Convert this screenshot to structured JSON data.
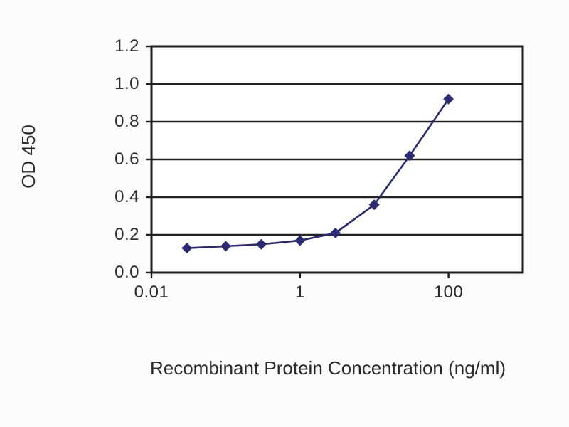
{
  "colors": {
    "page_background": "#fcfcfc",
    "plot_background": "#ffffff",
    "grid": "#222222",
    "frame": "#1d1d1d",
    "text": "#2b2b2b",
    "series": "#2a2a75"
  },
  "chart_data": {
    "type": "line",
    "xlabel": "Recombinant Protein Concentration (ng/ml)",
    "ylabel": "OD 450",
    "x_scale": "log",
    "xlim": [
      0.01,
      1000
    ],
    "ylim": [
      0,
      1.2
    ],
    "grid": "horizontal",
    "legend": "none",
    "x_ticks": [
      {
        "value": 0.01,
        "label": "0.01"
      },
      {
        "value": 1,
        "label": "1"
      },
      {
        "value": 100,
        "label": "100"
      }
    ],
    "y_ticks": [
      {
        "value": 0,
        "label": "0.0"
      },
      {
        "value": 0.2,
        "label": "0.2"
      },
      {
        "value": 0.4,
        "label": "0.4"
      },
      {
        "value": 0.6,
        "label": "0.6"
      },
      {
        "value": 0.8,
        "label": "0.8"
      },
      {
        "value": 1.0,
        "label": "1.0"
      },
      {
        "value": 1.2,
        "label": "1.2"
      }
    ],
    "series": [
      {
        "marker": "diamond",
        "color": "#2a2a75",
        "points": [
          {
            "x": 0.03,
            "y": 0.13
          },
          {
            "x": 0.1,
            "y": 0.14
          },
          {
            "x": 0.3,
            "y": 0.15
          },
          {
            "x": 1,
            "y": 0.17
          },
          {
            "x": 3,
            "y": 0.21
          },
          {
            "x": 10,
            "y": 0.36
          },
          {
            "x": 30,
            "y": 0.62
          },
          {
            "x": 100,
            "y": 0.92
          }
        ]
      }
    ]
  }
}
